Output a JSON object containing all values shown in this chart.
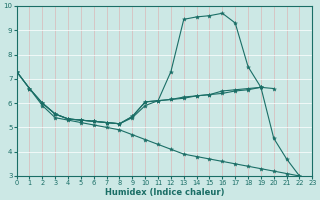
{
  "xlabel": "Humidex (Indice chaleur)",
  "xlim": [
    0,
    23
  ],
  "ylim": [
    3,
    10
  ],
  "yticks": [
    3,
    4,
    5,
    6,
    7,
    8,
    9,
    10
  ],
  "xticks": [
    0,
    1,
    2,
    3,
    4,
    5,
    6,
    7,
    8,
    9,
    10,
    11,
    12,
    13,
    14,
    15,
    16,
    17,
    18,
    19,
    20,
    21,
    22,
    23
  ],
  "bg_color": "#cce8e5",
  "grid_color": "#b0d8d4",
  "line_color": "#1a6e66",
  "series": [
    {
      "x": [
        0,
        1,
        2,
        3,
        4,
        5,
        6,
        7,
        8,
        9,
        10,
        11,
        12,
        13,
        14,
        15,
        16,
        17,
        18,
        19,
        20,
        21,
        22
      ],
      "y": [
        7.3,
        6.6,
        5.9,
        5.4,
        5.3,
        5.2,
        5.1,
        5.0,
        4.9,
        4.7,
        4.5,
        4.3,
        4.1,
        3.9,
        3.8,
        3.7,
        3.6,
        3.5,
        3.4,
        3.3,
        3.2,
        3.1,
        3.0
      ]
    },
    {
      "x": [
        0,
        1,
        2,
        3,
        4,
        5,
        6,
        7,
        8,
        9,
        10,
        11,
        12,
        13,
        14,
        15,
        16,
        17,
        18,
        19,
        20,
        21,
        22
      ],
      "y": [
        7.3,
        6.6,
        6.0,
        5.55,
        5.35,
        5.3,
        5.25,
        5.2,
        5.15,
        5.4,
        5.9,
        6.1,
        7.3,
        9.45,
        9.55,
        9.6,
        9.7,
        9.3,
        7.5,
        6.65,
        4.55,
        3.7,
        3.0
      ]
    },
    {
      "x": [
        0,
        1,
        2,
        3,
        4,
        5,
        6,
        7,
        8,
        9,
        10,
        11,
        12,
        13,
        14,
        15,
        16,
        17,
        18,
        19,
        20
      ],
      "y": [
        7.3,
        6.6,
        6.0,
        5.55,
        5.35,
        5.3,
        5.25,
        5.2,
        5.15,
        5.45,
        6.05,
        6.1,
        6.15,
        6.2,
        6.3,
        6.35,
        6.4,
        6.5,
        6.55,
        6.65,
        6.6
      ]
    },
    {
      "x": [
        2,
        3,
        4,
        5,
        6,
        7,
        8,
        9,
        10,
        11,
        12,
        13,
        14,
        15,
        16,
        17,
        18,
        19
      ],
      "y": [
        6.0,
        5.55,
        5.35,
        5.3,
        5.25,
        5.2,
        5.15,
        5.45,
        6.05,
        6.1,
        6.15,
        6.25,
        6.3,
        6.35,
        6.5,
        6.55,
        6.6,
        6.65
      ]
    }
  ]
}
